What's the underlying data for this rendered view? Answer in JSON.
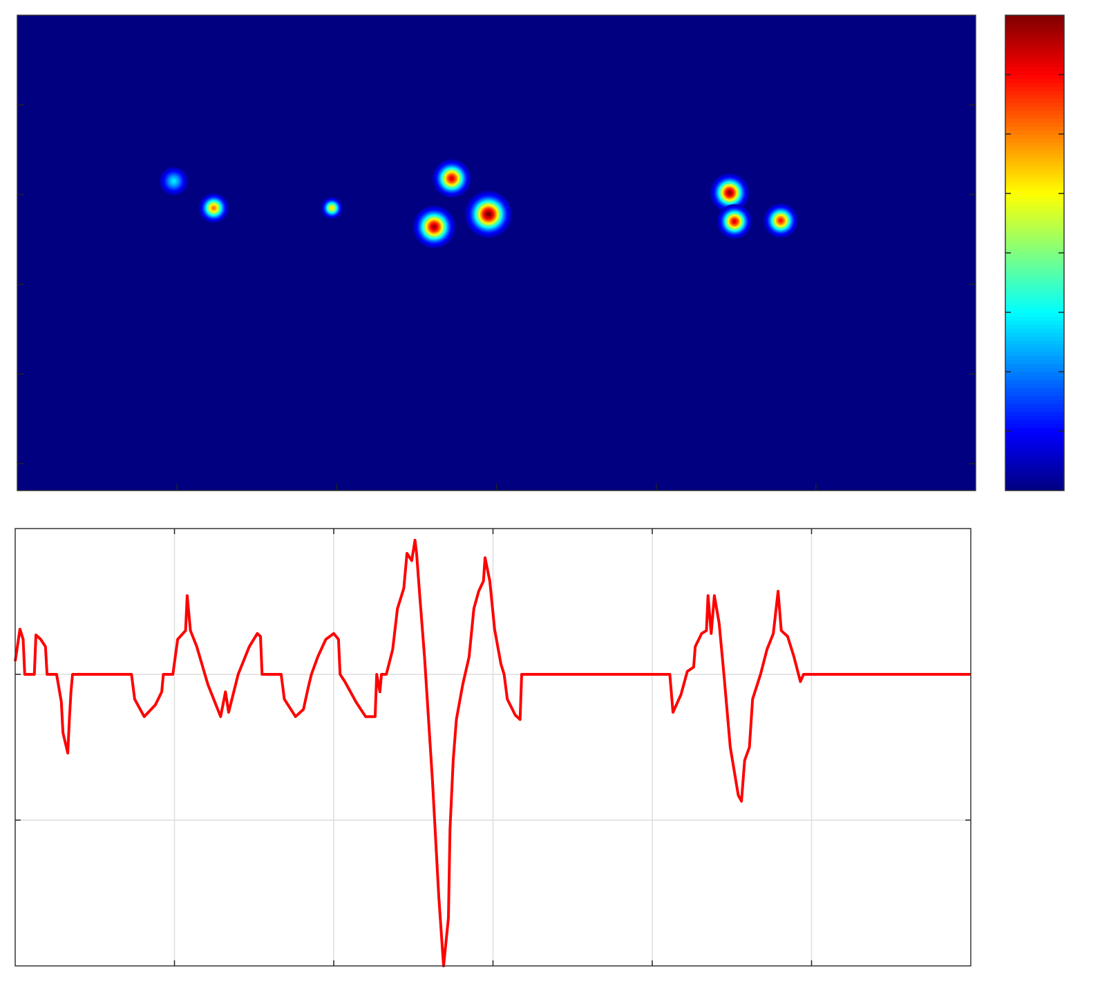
{
  "chart_data": [
    {
      "type": "heatmap",
      "colormap": "jet",
      "x": [
        0.98,
        1.23,
        1.97,
        2.72,
        2.61,
        2.95,
        4.46,
        4.49,
        4.78
      ],
      "y": [
        1.85,
        2.15,
        2.15,
        1.82,
        2.36,
        2.22,
        1.98,
        2.3,
        2.29
      ],
      "values": [
        0.35,
        0.75,
        0.65,
        0.9,
        0.95,
        1,
        0.97,
        0.9,
        0.85
      ],
      "sizes": [
        0.045,
        0.04,
        0.03,
        0.05,
        0.055,
        0.06,
        0.05,
        0.045,
        0.045
      ],
      "xlim": [
        0,
        6
      ],
      "xticks": [
        1,
        2,
        3,
        4,
        5
      ],
      "ylim": [
        0,
        5.3
      ],
      "yticks": [
        1,
        2,
        3,
        4,
        5
      ],
      "clim": [
        0,
        1
      ],
      "cticks": [
        0.125,
        0.25,
        0.375,
        0.5,
        0.625,
        0.75,
        0.875
      ]
    },
    {
      "type": "line",
      "color": "#ff0000",
      "grid": true,
      "x": [
        0,
        0.03,
        0.05,
        0.06,
        0.12,
        0.13,
        0.16,
        0.19,
        0.2,
        0.26,
        0.29,
        0.3,
        0.33,
        0.34,
        0.35,
        0.36,
        0.73,
        0.75,
        0.81,
        0.88,
        0.92,
        0.93,
        0.99,
        1.02,
        1.07,
        1.08,
        1.1,
        1.14,
        1.21,
        1.29,
        1.32,
        1.34,
        1.4,
        1.47,
        1.52,
        1.54,
        1.55,
        1.67,
        1.69,
        1.76,
        1.81,
        1.84,
        1.86,
        1.9,
        1.95,
        2,
        2.03,
        2.04,
        2.07,
        2.14,
        2.2,
        2.26,
        2.27,
        2.29,
        2.3,
        2.33,
        2.37,
        2.4,
        2.44,
        2.46,
        2.49,
        2.51,
        2.52,
        2.54,
        2.57,
        2.62,
        2.66,
        2.69,
        2.72,
        2.73,
        2.75,
        2.77,
        2.81,
        2.85,
        2.88,
        2.91,
        2.94,
        2.95,
        2.98,
        3.01,
        3.05,
        3.07,
        3.09,
        3.14,
        3.17,
        3.18,
        4.11,
        4.13,
        4.18,
        4.22,
        4.26,
        4.27,
        4.31,
        4.34,
        4.35,
        4.37,
        4.39,
        4.42,
        4.45,
        4.49,
        4.54,
        4.56,
        4.58,
        4.61,
        4.63,
        4.68,
        4.72,
        4.76,
        4.79,
        4.81,
        4.85,
        4.89,
        4.93,
        4.95,
        6
      ],
      "values": [
        0.09,
        0.31,
        0.24,
        0,
        0,
        0.27,
        0.24,
        0.19,
        0,
        0,
        -0.19,
        -0.4,
        -0.54,
        -0.31,
        -0.12,
        0,
        0,
        -0.17,
        -0.29,
        -0.21,
        -0.12,
        0,
        0,
        0.24,
        0.3,
        0.54,
        0.3,
        0.19,
        -0.07,
        -0.29,
        -0.12,
        -0.26,
        0,
        0.19,
        0.28,
        0.26,
        0,
        0,
        -0.17,
        -0.29,
        -0.24,
        -0.09,
        0,
        0.12,
        0.24,
        0.28,
        0.24,
        0,
        -0.05,
        -0.19,
        -0.29,
        -0.29,
        0,
        -0.12,
        0,
        0,
        0.17,
        0.45,
        0.59,
        0.83,
        0.78,
        0.92,
        0.83,
        0.54,
        0.12,
        -0.73,
        -1.53,
        -2,
        -1.67,
        -1.06,
        -0.59,
        -0.31,
        -0.07,
        0.12,
        0.45,
        0.57,
        0.64,
        0.8,
        0.64,
        0.31,
        0.07,
        0,
        -0.17,
        -0.28,
        -0.31,
        0,
        0,
        -0.26,
        -0.14,
        0.02,
        0.05,
        0.19,
        0.28,
        0.3,
        0.54,
        0.28,
        0.54,
        0.35,
        0,
        -0.5,
        -0.83,
        -0.87,
        -0.59,
        -0.5,
        -0.17,
        0,
        0.17,
        0.28,
        0.57,
        0.3,
        0.26,
        0.12,
        -0.05,
        0,
        0
      ],
      "xlim": [
        0,
        6
      ],
      "xticks": [
        1,
        2,
        3,
        4,
        5
      ],
      "ylim": [
        -2,
        1
      ],
      "yticks": [
        -1,
        0
      ]
    }
  ]
}
